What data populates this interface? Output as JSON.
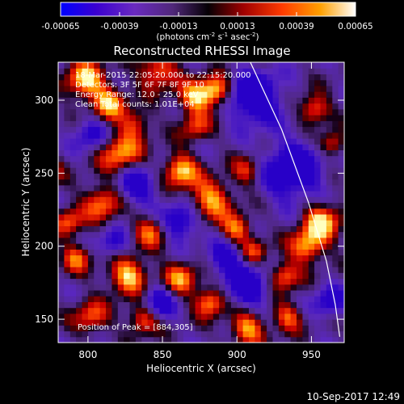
{
  "chart_data": {
    "type": "heatmap",
    "title": "Reconstructed RHESSI Image",
    "xlabel": "Heliocentric X (arcsec)",
    "ylabel": "Heliocentric Y (arcsec)",
    "xlim": [
      780,
      972
    ],
    "ylim": [
      134,
      326
    ],
    "xticks": [
      800,
      850,
      900,
      950
    ],
    "yticks": [
      150,
      200,
      250,
      300
    ],
    "colorbar": {
      "ticks": [
        "-0.00065",
        "-0.00039",
        "-0.00013",
        "0.00013",
        "0.00039",
        "0.00065"
      ],
      "range": [
        -0.00065,
        0.00065
      ],
      "unit_prefix": "(photons cm",
      "unit_sup1": "-2",
      "unit_mid1": " s",
      "unit_sup2": "-1",
      "unit_mid2": " asec",
      "unit_sup3": "-2",
      "unit_suffix": ")"
    },
    "annotations": {
      "time": "18-Mar-2015 22:05:20.000 to 22:15:20.000",
      "detectors": "Detectors: 3F 5F 6F 7F 8F 9F 10",
      "energy": "Energy Range: 12.0 - 25.0 keV",
      "clean": "Clean    Total counts: 1.01E+04",
      "peak": "Position of Peak = [884,305]"
    },
    "limb_curve": [
      [
        909,
        326
      ],
      [
        930,
        280
      ],
      [
        948,
        230
      ],
      [
        960,
        190
      ],
      [
        966,
        160
      ],
      [
        969,
        138
      ]
    ],
    "colormap": [
      "#0000ff",
      "#4a00c8",
      "#6a2ac0",
      "#5a2a8a",
      "#000000",
      "#b00000",
      "#ff4000",
      "#ffa000",
      "#ffff80",
      "#ffffff"
    ]
  },
  "footer": {
    "timestamp": "10-Sep-2017 12:49"
  }
}
